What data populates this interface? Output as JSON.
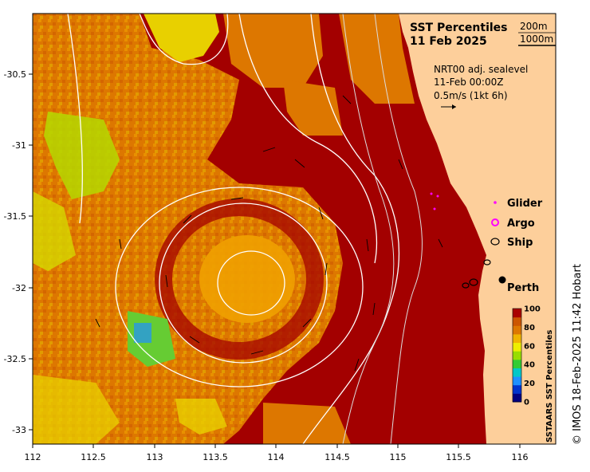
{
  "title": {
    "line1": "SST Percentiles",
    "line2": "11 Feb 2025"
  },
  "isobath_labels": [
    "200m",
    "1000m"
  ],
  "current_info": {
    "line1": "NRT00 adj. sealevel",
    "line2": "11-Feb 00:00Z",
    "line3": "0.5m/s (1kt 6h)"
  },
  "legend": {
    "glider": "Glider",
    "argo": "Argo",
    "ship": "Ship"
  },
  "city": "Perth",
  "colorbar": {
    "title": "SSTAARS SST Percentiles",
    "ticks": [
      "100",
      "80",
      "60",
      "40",
      "20",
      "0"
    ],
    "colors": [
      "#000080",
      "#0033cc",
      "#1e90ff",
      "#00c8c8",
      "#33cc33",
      "#99dd00",
      "#eeee00",
      "#f0b400",
      "#dd7700",
      "#cc5500",
      "#aa0000"
    ]
  },
  "credit": "© IMOS 18-Feb-2025 11:42 Hobart",
  "x_ticks": [
    "112",
    "112.5",
    "113",
    "113.5",
    "114",
    "114.5",
    "115",
    "115.5",
    "116"
  ],
  "y_ticks": [
    "-30.5",
    "-31",
    "-31.5",
    "-32",
    "-32.5",
    "-33"
  ],
  "colors": {
    "dark_red": "#a30000",
    "orange": "#dd7700",
    "light_orange": "#f0a000",
    "yellow": "#e8e000",
    "green": "#66cc33",
    "land": "#fdcf9b",
    "contour": "#ffffff"
  }
}
